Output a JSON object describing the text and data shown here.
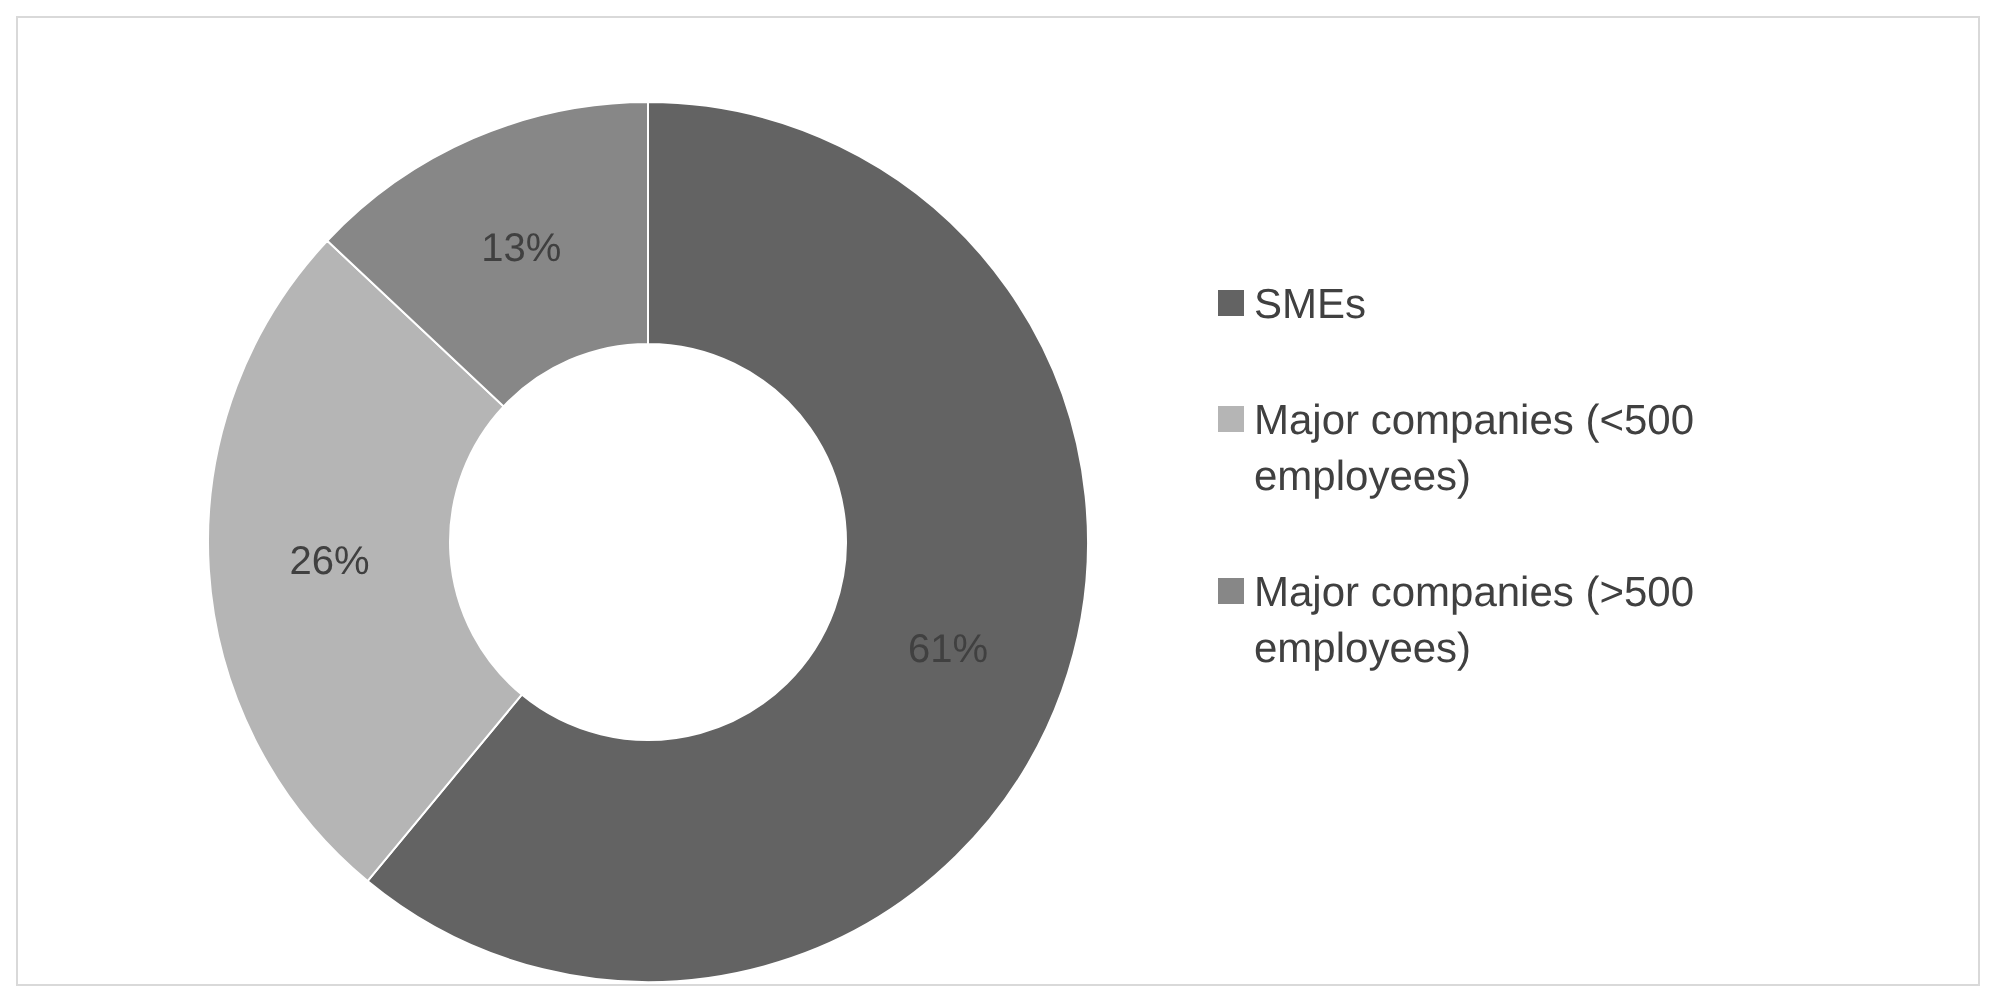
{
  "chart_data": {
    "type": "donut",
    "categories": [
      "SMEs",
      "Major companies (<500 employees)",
      "Major companies (>500 employees)"
    ],
    "values": [
      61,
      26,
      13
    ],
    "colors": [
      "#636363",
      "#b5b5b5",
      "#878787"
    ],
    "value_labels": [
      "61%",
      "26%",
      "13%"
    ],
    "legend": "right"
  }
}
